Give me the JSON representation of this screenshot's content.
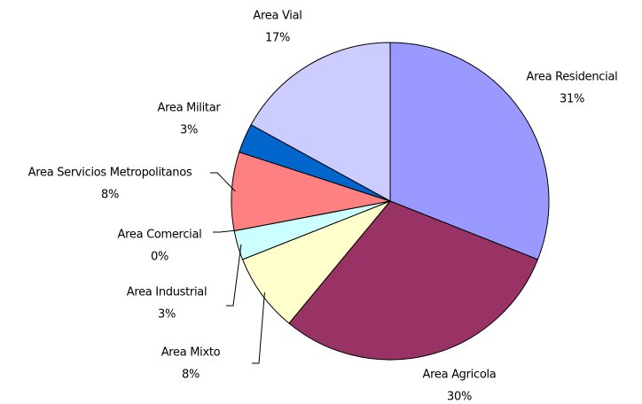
{
  "chart_data": {
    "type": "pie",
    "categories": [
      "Area Residencial",
      "Area Agricola",
      "Area Mixto",
      "Area Industrial",
      "Area Comercial",
      "Area Servicios Metropolitanos",
      "Area Militar",
      "Area Vial"
    ],
    "values": [
      31,
      30,
      8,
      3,
      0,
      8,
      3,
      17
    ],
    "value_labels": [
      "31%",
      "30%",
      "8%",
      "3%",
      "0%",
      "8%",
      "3%",
      "17%"
    ],
    "colors": [
      "#9999ff",
      "#993366",
      "#ffffcc",
      "#ccffff",
      "#660066",
      "#ff8080",
      "#0066cc",
      "#ccccff"
    ]
  }
}
